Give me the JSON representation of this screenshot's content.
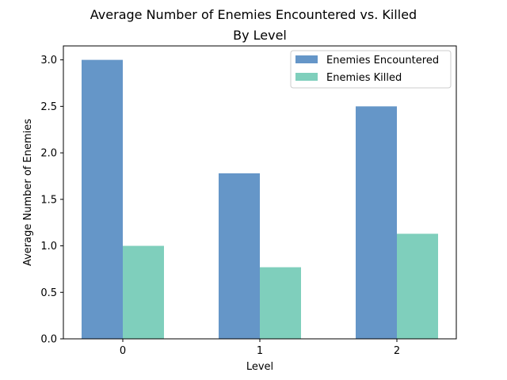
{
  "chart_data": {
    "type": "bar",
    "title_line1": "Average Number of Enemies Encountered vs. Killed",
    "title_line2": "By Level",
    "xlabel": "Level",
    "ylabel": "Average Number of Enemies",
    "categories": [
      "0",
      "1",
      "2"
    ],
    "ylim": [
      0,
      3.15
    ],
    "yticks": [
      "0.0",
      "0.5",
      "1.0",
      "1.5",
      "2.0",
      "2.5",
      "3.0"
    ],
    "grid": false,
    "legend_position": "top-right",
    "series": [
      {
        "name": "Enemies Encountered",
        "values": [
          3.0,
          1.78,
          2.5
        ],
        "color": "#6596c8"
      },
      {
        "name": "Enemies Killed",
        "values": [
          1.0,
          0.77,
          1.13
        ],
        "color": "#7fcfbc"
      }
    ]
  }
}
